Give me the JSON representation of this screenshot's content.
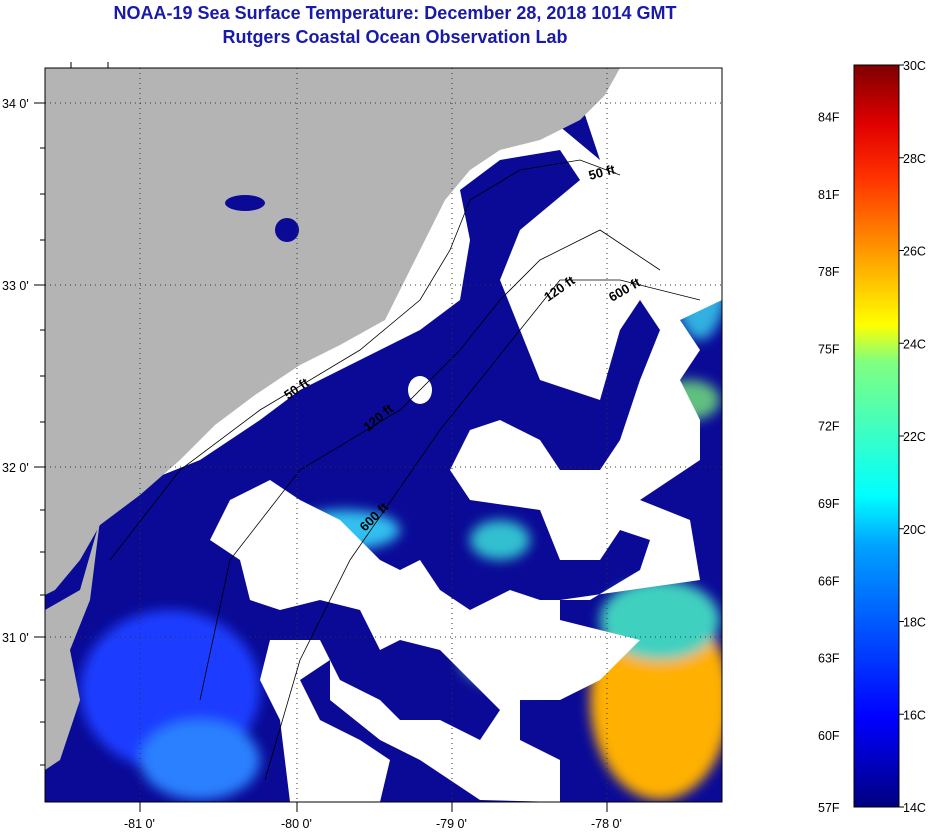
{
  "title": "NOAA-19 Sea Surface Temperature:  December 28, 2018 1014 GMT",
  "subtitle": "Rutgers Coastal Ocean Observation Lab",
  "map": {
    "lat_labels": [
      "34 0'",
      "33 0'",
      "32 0'",
      "31 0'"
    ],
    "lon_labels": [
      "-81 0'",
      "-80 0'",
      "-79 0'",
      "-78 0'"
    ],
    "contour_labels": [
      "50 ft",
      "120 ft",
      "600 ft",
      "50 ft",
      "120 ft",
      "600 ft"
    ],
    "colors": {
      "land": "#b4b4b4",
      "cloud": "#ffffff",
      "water_cold": "#0a0a96"
    }
  },
  "colorbar": {
    "f_labels": [
      "84F",
      "81F",
      "78F",
      "75F",
      "72F",
      "69F",
      "66F",
      "63F",
      "60F",
      "57F"
    ],
    "c_labels": [
      "30C",
      "28C",
      "26C",
      "24C",
      "22C",
      "20C",
      "18C",
      "16C",
      "14C"
    ],
    "range_c": [
      14,
      30
    ]
  }
}
